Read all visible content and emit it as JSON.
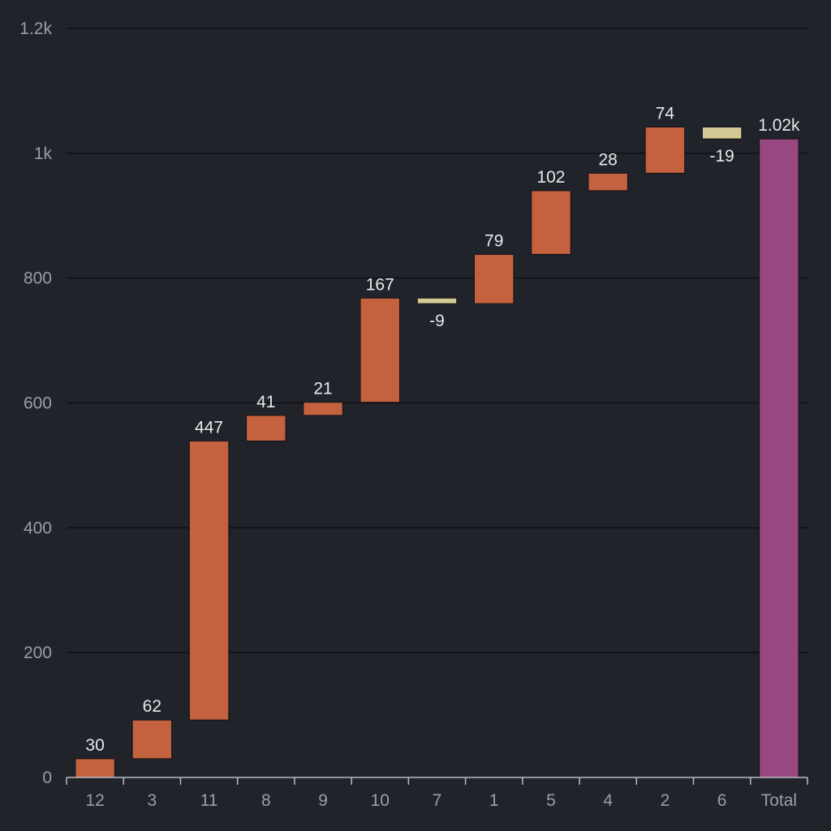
{
  "chart_data": {
    "type": "bar",
    "subtype": "waterfall",
    "title": "",
    "xlabel": "",
    "ylabel": "",
    "ylim": [
      0,
      1200
    ],
    "yticks": [
      0,
      200,
      400,
      600,
      800,
      1000,
      1200
    ],
    "ytick_labels": [
      "0",
      "200",
      "400",
      "600",
      "800",
      "1k",
      "1.2k"
    ],
    "grid": true,
    "legend": "none",
    "categories": [
      "12",
      "3",
      "11",
      "8",
      "9",
      "10",
      "7",
      "1",
      "5",
      "4",
      "2",
      "6",
      "Total"
    ],
    "values": [
      30,
      62,
      447,
      41,
      21,
      167,
      -9,
      79,
      102,
      28,
      74,
      -19,
      1023
    ],
    "labels": [
      "30",
      "62",
      "447",
      "41",
      "21",
      "167",
      "-9",
      "79",
      "102",
      "28",
      "74",
      "-19",
      "1.02k"
    ],
    "total_index": 12,
    "colors": {
      "increase": "#c4613f",
      "decrease": "#d2cb98",
      "total": "#974880",
      "background": "#21232b"
    }
  }
}
